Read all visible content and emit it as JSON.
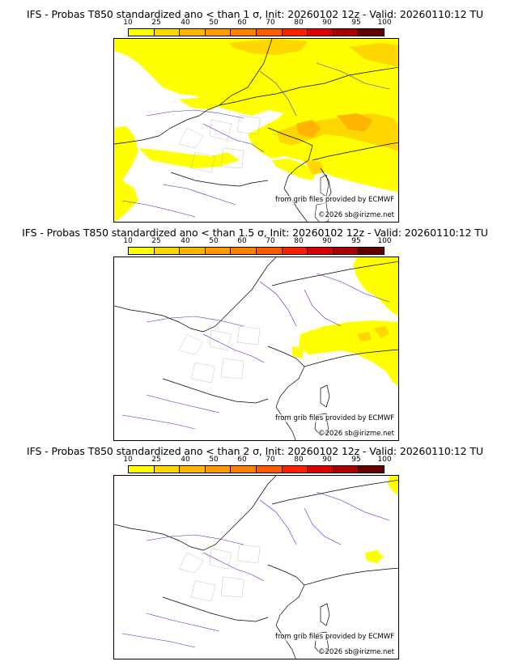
{
  "colors": {
    "scale": [
      "#ffff00",
      "#ffd700",
      "#ffb400",
      "#ff9a00",
      "#ff7f00",
      "#ff5a00",
      "#ff1e00",
      "#dc0000",
      "#aa0000",
      "#640000"
    ],
    "border": "#000000",
    "rivers": "#3030d0",
    "regions": "#b0b0b0"
  },
  "scale_labels": [
    "10",
    "25",
    "40",
    "50",
    "60",
    "70",
    "80",
    "90",
    "95",
    "100"
  ],
  "source_text": "from grib files provided by ECMWF",
  "copyright_text": "©2026 sb@irizme.net",
  "panels": [
    {
      "title": "IFS - Probas T850  standardized ano < than 1 σ, Init: 20260102 12z - Valid: 20260110:12 TU",
      "threshold": "1"
    },
    {
      "title": "IFS - Probas T850  standardized ano < than 1.5 σ, Init: 20260102 12z - Valid: 20260110:12 TU",
      "threshold": "1.5"
    },
    {
      "title": "IFS - Probas T850  standardized ano < than 2 σ, Init: 20260102 12z - Valid: 20260110:12 TU",
      "threshold": "2"
    }
  ]
}
